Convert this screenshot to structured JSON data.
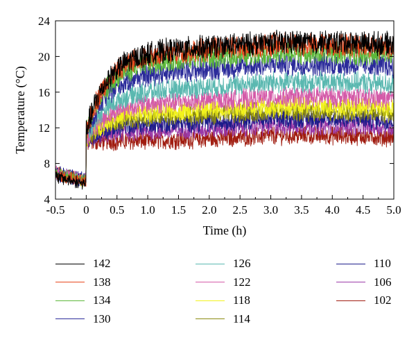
{
  "chart_data": {
    "type": "line",
    "xlabel": "Time (h)",
    "ylabel": "Temperature (°C)",
    "xlim": [
      -0.5,
      5.0
    ],
    "ylim": [
      4,
      24
    ],
    "x_ticks": [
      "-0.5",
      "0",
      "0.5",
      "1.0",
      "1.5",
      "2.0",
      "2.5",
      "3.0",
      "3.5",
      "4.0",
      "4.5",
      "5.0"
    ],
    "y_ticks": [
      "4",
      "8",
      "12",
      "16",
      "20",
      "24"
    ],
    "grid": false,
    "legend_position": "below",
    "series": [
      {
        "name": "142",
        "color": "#000000",
        "plateau": 21.5
      },
      {
        "name": "138",
        "color": "#e8461c",
        "plateau": 21.2
      },
      {
        "name": "134",
        "color": "#5cb83a",
        "plateau": 20.3
      },
      {
        "name": "130",
        "color": "#2b2b9a",
        "plateau": 19.0
      },
      {
        "name": "126",
        "color": "#5ab8b0",
        "plateau": 17.0
      },
      {
        "name": "122",
        "color": "#d45aa8",
        "plateau": 15.6
      },
      {
        "name": "118",
        "color": "#f2f21c",
        "plateau": 14.6
      },
      {
        "name": "114",
        "color": "#8a8a10",
        "plateau": 14.0
      },
      {
        "name": "110",
        "color": "#1c1c8a",
        "plateau": 13.2
      },
      {
        "name": "106",
        "color": "#9a3aa8",
        "plateau": 12.4
      },
      {
        "name": "102",
        "color": "#a01c10",
        "plateau": 11.3
      }
    ]
  }
}
